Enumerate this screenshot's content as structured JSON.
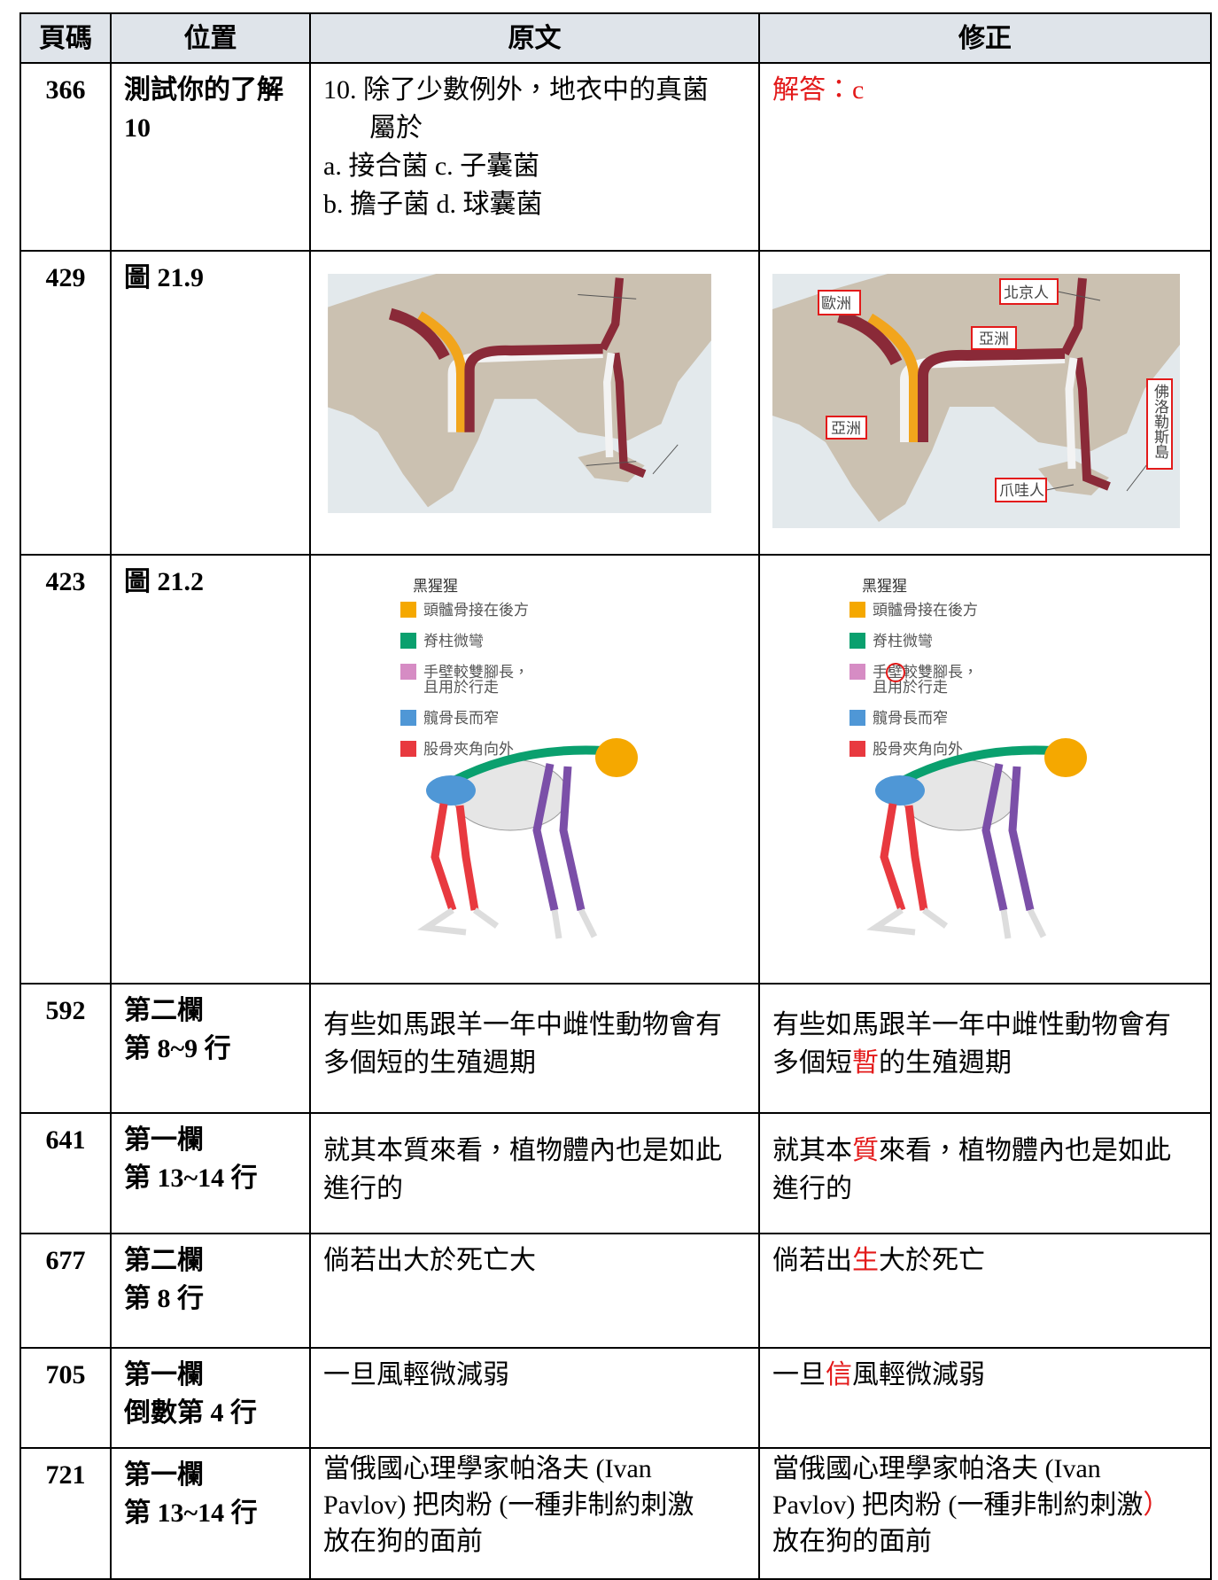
{
  "header": [
    "頁碼",
    "位置",
    "原文",
    "修正"
  ],
  "rows": [
    {
      "page": "366",
      "location": [
        "測試你的了解",
        "10"
      ],
      "original": [
        "10. 除了少數例外，地衣中的真菌",
        "屬於",
        "a. 接合菌 c. 子囊菌",
        "b. 擔子菌 d. 球囊菌"
      ],
      "correction": [
        [
          {
            "text": "解答：c",
            "highlight": true
          }
        ]
      ]
    },
    {
      "page": "429",
      "location": [
        "圖 21.9"
      ],
      "correction_figure": {
        "labels": [
          "歐洲",
          "北京人",
          "亞洲",
          "亞洲",
          "佛洛勒斯島",
          "爪哇人"
        ]
      }
    },
    {
      "page": "423",
      "location": [
        "圖 21.2"
      ],
      "figure": {
        "title": "黑猩猩",
        "legend": [
          {
            "color": "#f5a800",
            "lines": [
              "頭髗骨接在後方"
            ]
          },
          {
            "color": "#0aa06e",
            "lines": [
              "脊柱微彎"
            ]
          },
          {
            "color": "#d68cc4",
            "lines": [
              "手壁較雙腳長，",
              "且用於行走"
            ]
          },
          {
            "color": "#4f97d6",
            "lines": [
              "髖骨長而窄"
            ]
          },
          {
            "color": "#e8393f",
            "lines": [
              "股骨夾角向外"
            ]
          }
        ]
      }
    },
    {
      "page": "592",
      "location": [
        "第二欄",
        "第 8~9 行"
      ],
      "original": [
        "有些如馬跟羊一年中雌性動物會有",
        "多個短的生殖週期"
      ],
      "correction": [
        [
          {
            "text": "有些如馬跟羊一年中雌性動物會有"
          }
        ],
        [
          {
            "text": "多個短"
          },
          {
            "text": "暫",
            "highlight": true
          },
          {
            "text": "的生殖週期"
          }
        ]
      ]
    },
    {
      "page": "641",
      "location": [
        "第一欄",
        "第 13~14 行"
      ],
      "original": [
        "就其本質來看，植物體內也是如此",
        "進行的"
      ],
      "correction": [
        [
          {
            "text": "就其本"
          },
          {
            "text": "質",
            "highlight": true
          },
          {
            "text": "來看，植物體內也是如此"
          }
        ],
        [
          {
            "text": "進行的"
          }
        ]
      ]
    },
    {
      "page": "677",
      "location": [
        "第二欄",
        "第 8 行"
      ],
      "original": [
        "倘若出大於死亡大"
      ],
      "correction": [
        [
          {
            "text": "倘若出"
          },
          {
            "text": "生",
            "highlight": true
          },
          {
            "text": "大於死亡"
          }
        ]
      ]
    },
    {
      "page": "705",
      "location": [
        "第一欄",
        "倒數第 4 行"
      ],
      "original": [
        "一旦風輕微減弱"
      ],
      "correction": [
        [
          {
            "text": "一旦"
          },
          {
            "text": "信",
            "highlight": true
          },
          {
            "text": "風輕微減弱"
          }
        ]
      ]
    },
    {
      "page": "721",
      "location": [
        "第一欄",
        "第 13~14 行"
      ],
      "original": [
        "當俄國心理學家帕洛夫 (Ivan",
        "Pavlov) 把肉粉 (一種非制約刺激",
        "放在狗的面前"
      ],
      "correction": [
        [
          {
            "text": "當俄國心理學家帕洛夫 (Ivan"
          }
        ],
        [
          {
            "text": "Pavlov) 把肉粉 (一種非制約刺激"
          },
          {
            "text": "）",
            "highlight": true
          }
        ],
        [
          {
            "text": "放在狗的面前"
          }
        ]
      ]
    }
  ]
}
